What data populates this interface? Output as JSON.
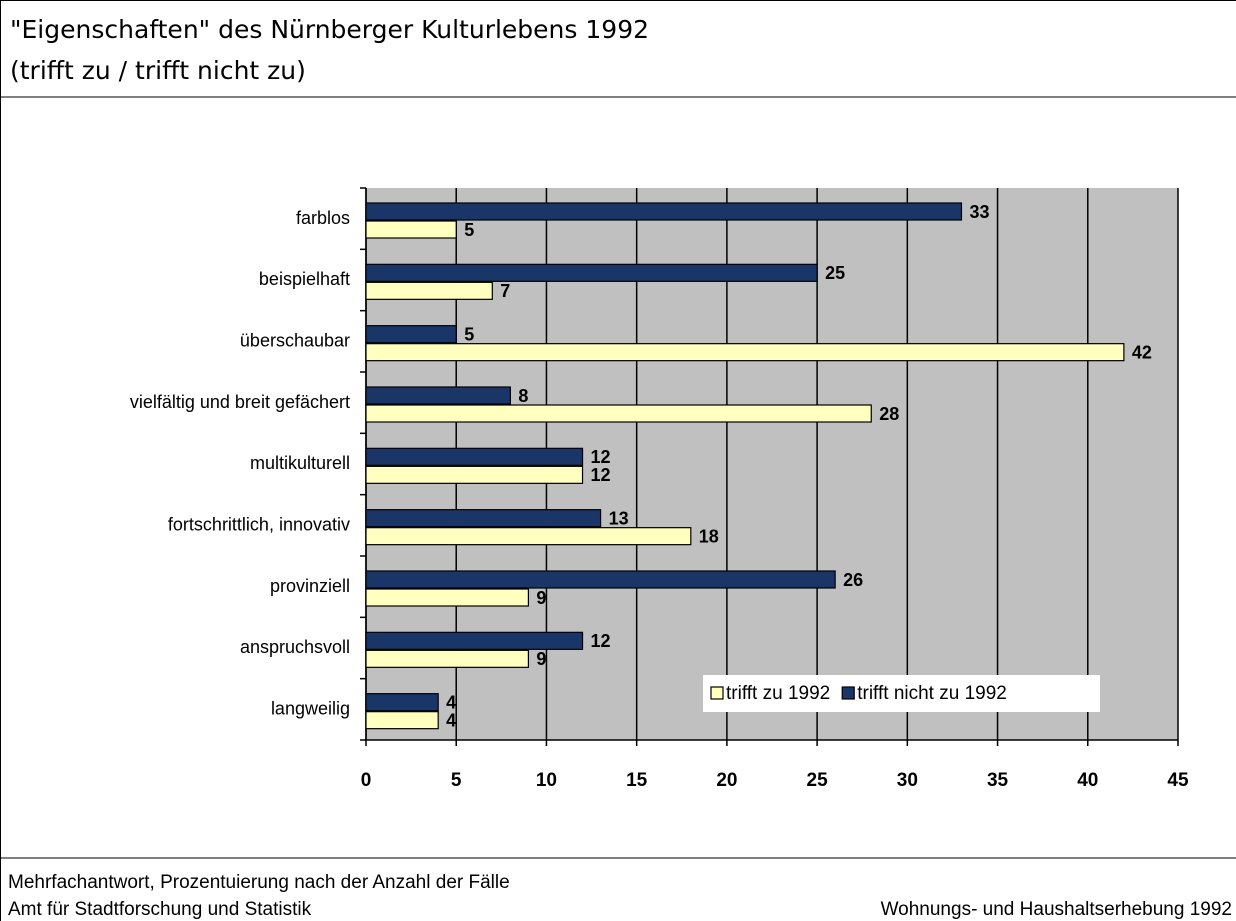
{
  "chart_data": {
    "type": "bar",
    "orientation": "horizontal",
    "title": "\"Eigenschaften\" des Nürnberger Kulturlebens 1992",
    "subtitle": "(trifft zu / trifft nicht zu)",
    "categories": [
      "farblos",
      "beispielhaft",
      "überschaubar",
      "vielfältig und breit gefächert",
      "multikulturell",
      "fortschrittlich, innovativ",
      "provinziell",
      "anspruchsvoll",
      "langweilig"
    ],
    "series": [
      {
        "name": "trifft zu 1992",
        "color": "#ffffc0",
        "values": [
          5,
          7,
          42,
          28,
          12,
          18,
          9,
          9,
          4
        ]
      },
      {
        "name": "trifft nicht zu 1992",
        "color": "#1a3668",
        "values": [
          33,
          25,
          5,
          8,
          12,
          13,
          26,
          12,
          4
        ]
      }
    ],
    "xlim": [
      0,
      45
    ],
    "xticks": [
      0,
      5,
      10,
      15,
      20,
      25,
      30,
      35,
      40,
      45
    ],
    "grid": true,
    "legend": "lower right",
    "notes": [
      "Mehrfachantwort, Prozentuierung nach der Anzahl der Fälle",
      "Amt für Stadtforschung und Statistik",
      "Wohnungs- und Haushaltserhebung  1992"
    ]
  }
}
